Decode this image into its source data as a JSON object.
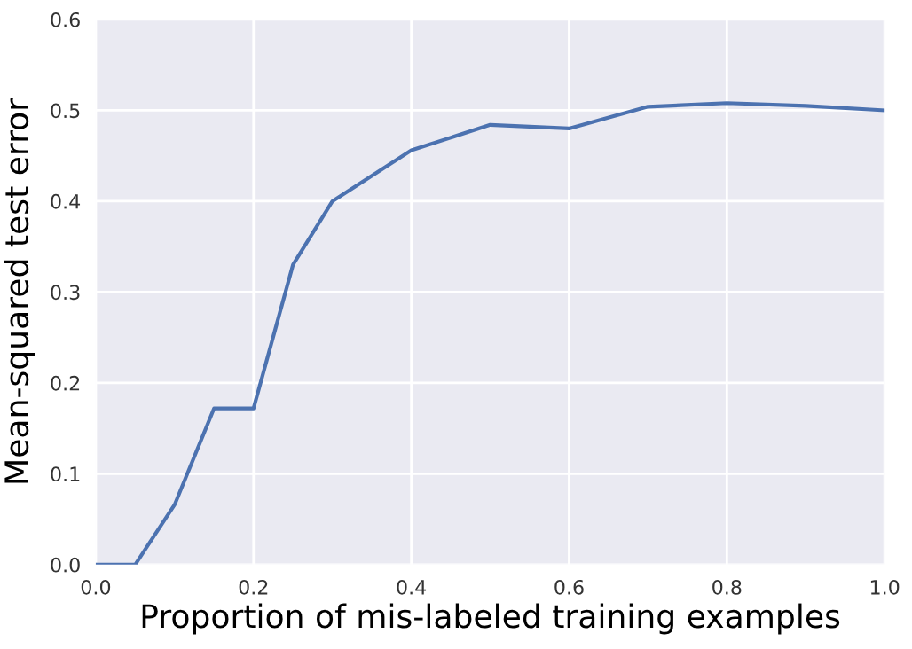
{
  "chart_data": {
    "type": "line",
    "xlabel": "Proportion of mis-labeled training examples",
    "ylabel": "Mean-squared test error",
    "x": [
      0,
      0.05,
      0.1,
      0.15,
      0.2,
      0.25,
      0.3,
      0.4,
      0.5,
      0.6,
      0.7,
      0.8,
      0.9,
      1.0
    ],
    "series": [
      {
        "color": "#4c72b0",
        "values": [
          0,
          0,
          0.066,
          0.172,
          0.172,
          0.33,
          0.4,
          0.456,
          0.484,
          0.48,
          0.504,
          0.508,
          0.505,
          0.5
        ]
      }
    ],
    "xlim": [
      0,
      1
    ],
    "ylim": [
      0,
      0.6
    ],
    "xticks": [
      {
        "value": 0,
        "label": "0.0"
      },
      0.2,
      0.4,
      0.6,
      0.8,
      {
        "value": 1,
        "label": "1.0"
      }
    ],
    "yticks": [
      {
        "value": 0,
        "label": "0.0"
      },
      0.1,
      0.2,
      0.3,
      0.4,
      0.5,
      0.6
    ],
    "grid": true,
    "marker": "none",
    "line_style": "solid"
  }
}
